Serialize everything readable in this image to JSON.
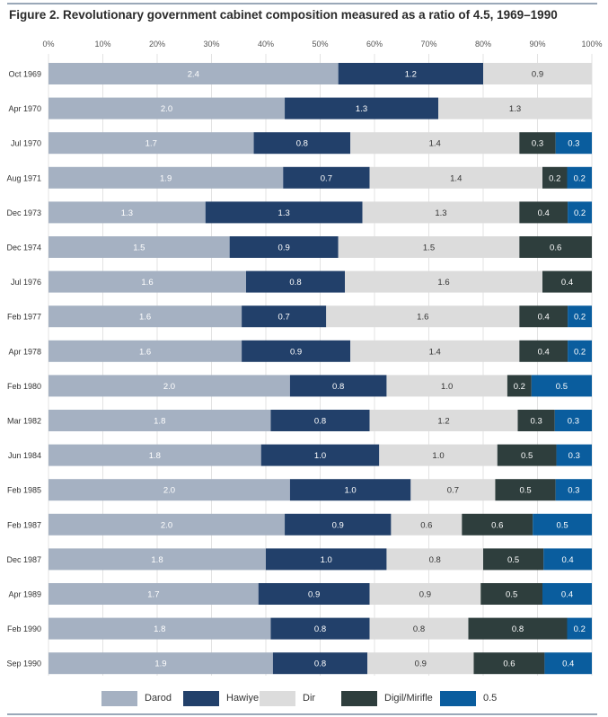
{
  "chart_data": {
    "type": "bar",
    "orientation": "horizontal",
    "stacked": true,
    "normalized_percent": true,
    "title": "Figure 2. Revolutionary government cabinet composition measured as a ratio of 4.5, 1969–1990",
    "xlim": [
      0,
      100
    ],
    "x_ticks": [
      "0%",
      "10%",
      "20%",
      "30%",
      "40%",
      "50%",
      "60%",
      "70%",
      "80%",
      "90%",
      "100%"
    ],
    "grid": true,
    "legend_position": "bottom",
    "categories": [
      "Oct 1969",
      "Apr 1970",
      "Jul 1970",
      "Aug 1971",
      "Dec 1973",
      "Dec 1974",
      "Jul 1976",
      "Feb 1977",
      "Apr 1978",
      "Feb 1980",
      "Mar 1982",
      "Jun 1984",
      "Feb 1985",
      "Feb 1987",
      "Dec 1987",
      "Apr 1989",
      "Feb 1990",
      "Sep 1990"
    ],
    "series": [
      {
        "name": "Darod",
        "color": "#a5b1c2",
        "label_color": "#ffffff",
        "values": [
          2.4,
          2.0,
          1.7,
          1.9,
          1.3,
          1.5,
          1.6,
          1.6,
          1.6,
          2.0,
          1.8,
          1.8,
          2.0,
          2.0,
          1.8,
          1.7,
          1.8,
          1.9
        ]
      },
      {
        "name": "Hawiye",
        "color": "#22406a",
        "label_color": "#ffffff",
        "values": [
          1.2,
          1.3,
          0.8,
          0.7,
          1.3,
          0.9,
          0.8,
          0.7,
          0.9,
          0.8,
          0.8,
          1.0,
          1.0,
          0.9,
          1.0,
          0.9,
          0.8,
          0.8
        ]
      },
      {
        "name": "Dir",
        "color": "#dcdcdc",
        "label_color": "#333333",
        "values": [
          0.9,
          1.3,
          1.4,
          1.4,
          1.3,
          1.5,
          1.6,
          1.6,
          1.4,
          1.0,
          1.2,
          1.0,
          0.7,
          0.6,
          0.8,
          0.9,
          0.8,
          0.9
        ]
      },
      {
        "name": "Digil/Mirifle",
        "color": "#2e3e3d",
        "label_color": "#ffffff",
        "values": [
          null,
          null,
          0.3,
          0.2,
          0.4,
          0.6,
          0.4,
          0.4,
          0.4,
          0.2,
          0.3,
          0.5,
          0.5,
          0.6,
          0.5,
          0.5,
          0.8,
          0.6
        ]
      },
      {
        "name": "0.5",
        "color": "#0a5d9e",
        "label_color": "#ffffff",
        "values": [
          null,
          null,
          0.3,
          0.2,
          0.2,
          null,
          null,
          0.2,
          0.2,
          0.5,
          0.3,
          0.3,
          0.3,
          0.5,
          0.4,
          0.4,
          0.2,
          0.4
        ]
      }
    ]
  }
}
